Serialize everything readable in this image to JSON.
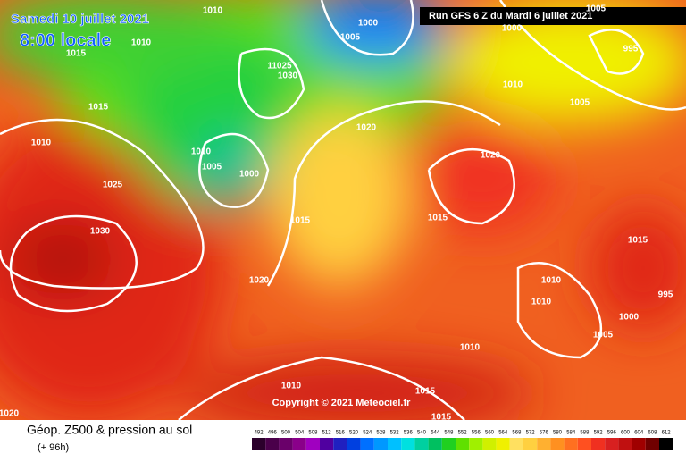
{
  "header": {
    "date": "Samedi 10 juillet 2021",
    "time": "8:00 locale",
    "run": "Run GFS 6 Z du Mardi 6 juillet 2021"
  },
  "footer": {
    "title": "Géop. Z500 & pression au sol",
    "lead": "(+ 96h)",
    "copyright": "Copyright © 2021 Meteociel.fr"
  },
  "isobar_labels": [
    "1010",
    "1000",
    "1005",
    "1015",
    "1010",
    "11025",
    "1030",
    "1015",
    "1010",
    "1010",
    "1005",
    "1000",
    "1025",
    "1020",
    "1020",
    "1015",
    "1015",
    "1030",
    "1020",
    "1010",
    "1005",
    "995",
    "1000",
    "1005",
    "1015",
    "1010",
    "1010",
    "995",
    "1000",
    "1005",
    "1010",
    "1010",
    "1015",
    "1015",
    "1020"
  ],
  "legend": {
    "ticks": [
      492,
      496,
      500,
      504,
      508,
      512,
      516,
      520,
      524,
      528,
      532,
      536,
      540,
      544,
      548,
      552,
      556,
      560,
      564,
      568,
      572,
      576,
      580,
      584,
      588,
      592,
      596,
      600,
      604,
      608,
      612
    ],
    "colors": [
      "#2b002b",
      "#4a004a",
      "#6a006a",
      "#8a008a",
      "#a000c0",
      "#5000a0",
      "#2020c0",
      "#0040e0",
      "#0070ff",
      "#0098ff",
      "#00c0ff",
      "#00e0e0",
      "#00d0a0",
      "#00c060",
      "#20d020",
      "#60e000",
      "#a0f000",
      "#d0f000",
      "#f0f000",
      "#ffe060",
      "#ffd040",
      "#ffb030",
      "#ff9020",
      "#ff7020",
      "#ff5020",
      "#f03020",
      "#d82020",
      "#c01010",
      "#a00000",
      "#700000",
      "#000000"
    ]
  }
}
